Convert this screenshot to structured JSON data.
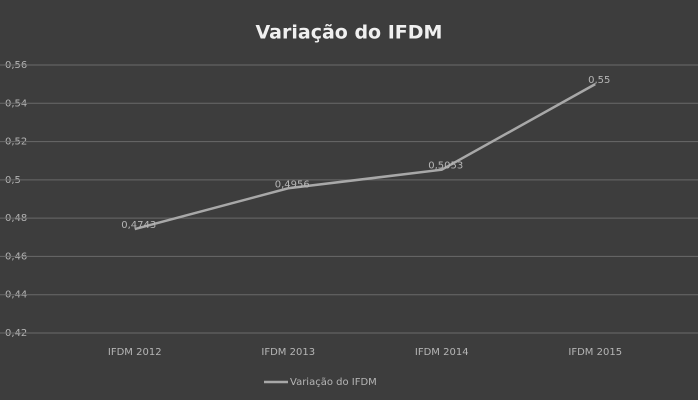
{
  "chart_data": {
    "type": "line",
    "title": "Variação do IFDM",
    "categories": [
      "IFDM 2012",
      "IFDM 2013",
      "IFDM 2014",
      "IFDM 2015"
    ],
    "series": [
      {
        "name": "Variação do IFDM",
        "color": "#a8a8a8",
        "values": [
          0.4743,
          0.4956,
          0.5053,
          0.55
        ],
        "value_labels": [
          "0,4743",
          "0,4956",
          "0,5053",
          "0,55"
        ]
      }
    ],
    "ylim": [
      0.42,
      0.56
    ],
    "yticks": [
      {
        "value": 0.42,
        "label": "0,42"
      },
      {
        "value": 0.44,
        "label": "0,44"
      },
      {
        "value": 0.46,
        "label": "0,46"
      },
      {
        "value": 0.48,
        "label": "0,48"
      },
      {
        "value": 0.5,
        "label": "0,5"
      },
      {
        "value": 0.52,
        "label": "0,52"
      },
      {
        "value": 0.54,
        "label": "0,54"
      },
      {
        "value": 0.56,
        "label": "0,56"
      }
    ],
    "grid": true,
    "legend": "bottom"
  }
}
